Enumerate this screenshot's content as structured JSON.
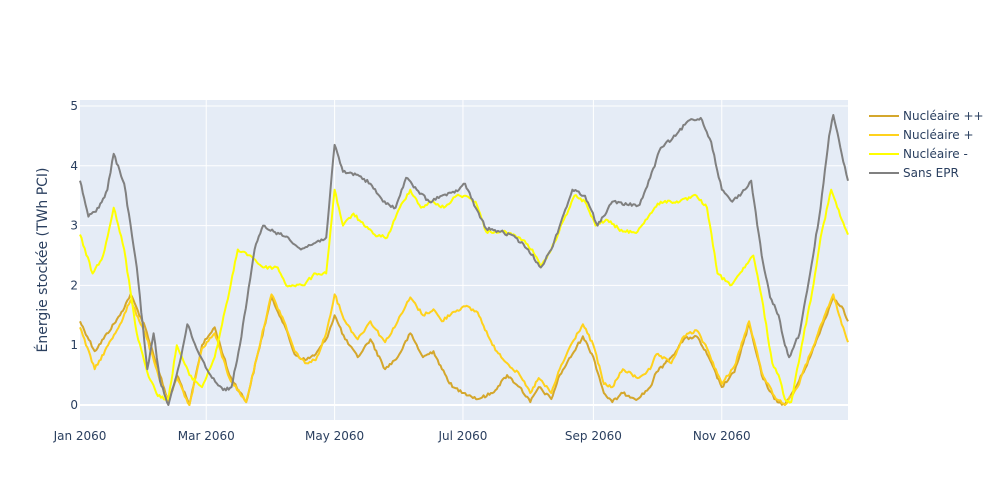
{
  "chart_data": {
    "type": "line",
    "title": "",
    "xlabel": "",
    "ylabel": "Énergie stockée (TWh PCI)",
    "x_range": [
      "2060-01-01",
      "2060-12-31"
    ],
    "ylim": [
      -0.25,
      5.1
    ],
    "x_ticks": [
      {
        "date": "2060-01-01",
        "label": "Jan 2060"
      },
      {
        "date": "2060-03-01",
        "label": "Mar 2060"
      },
      {
        "date": "2060-05-01",
        "label": "May 2060"
      },
      {
        "date": "2060-07-01",
        "label": "Jul 2060"
      },
      {
        "date": "2060-09-01",
        "label": "Sep 2060"
      },
      {
        "date": "2060-11-01",
        "label": "Nov 2060"
      }
    ],
    "y_ticks": [
      0,
      1,
      2,
      3,
      4,
      5
    ],
    "grid": true,
    "legend_position": "right",
    "plot_background": "#e5ecf6",
    "series": [
      {
        "name": "Nucléaire ++",
        "color": "#d4a72c",
        "points": [
          [
            "2060-01-01",
            1.4
          ],
          [
            "2060-01-08",
            0.9
          ],
          [
            "2060-01-20",
            1.5
          ],
          [
            "2060-01-25",
            1.85
          ],
          [
            "2060-02-01",
            1.3
          ],
          [
            "2060-02-08",
            0.5
          ],
          [
            "2060-02-12",
            0.05
          ],
          [
            "2060-02-16",
            0.5
          ],
          [
            "2060-02-22",
            0.0
          ],
          [
            "2060-02-28",
            1.0
          ],
          [
            "2060-03-05",
            1.3
          ],
          [
            "2060-03-12",
            0.5
          ],
          [
            "2060-03-20",
            0.05
          ],
          [
            "2060-04-01",
            1.8
          ],
          [
            "2060-04-07",
            1.35
          ],
          [
            "2060-04-12",
            0.85
          ],
          [
            "2060-04-17",
            0.75
          ],
          [
            "2060-04-22",
            0.85
          ],
          [
            "2060-04-27",
            1.1
          ],
          [
            "2060-05-01",
            1.5
          ],
          [
            "2060-05-06",
            1.1
          ],
          [
            "2060-05-12",
            0.8
          ],
          [
            "2060-05-18",
            1.1
          ],
          [
            "2060-05-25",
            0.6
          ],
          [
            "2060-05-31",
            0.8
          ],
          [
            "2060-06-06",
            1.2
          ],
          [
            "2060-06-12",
            0.8
          ],
          [
            "2060-06-17",
            0.9
          ],
          [
            "2060-06-21",
            0.6
          ],
          [
            "2060-06-26",
            0.3
          ],
          [
            "2060-07-02",
            0.2
          ],
          [
            "2060-07-08",
            0.1
          ],
          [
            "2060-07-15",
            0.2
          ],
          [
            "2060-07-22",
            0.5
          ],
          [
            "2060-07-28",
            0.3
          ],
          [
            "2060-08-02",
            0.05
          ],
          [
            "2060-08-06",
            0.3
          ],
          [
            "2060-08-12",
            0.1
          ],
          [
            "2060-08-16",
            0.5
          ],
          [
            "2060-08-22",
            0.85
          ],
          [
            "2060-08-27",
            1.15
          ],
          [
            "2060-09-01",
            0.8
          ],
          [
            "2060-09-06",
            0.2
          ],
          [
            "2060-09-10",
            0.05
          ],
          [
            "2060-09-15",
            0.2
          ],
          [
            "2060-09-22",
            0.1
          ],
          [
            "2060-09-28",
            0.3
          ],
          [
            "2060-10-01",
            0.55
          ],
          [
            "2060-10-08",
            0.8
          ],
          [
            "2060-10-14",
            1.1
          ],
          [
            "2060-10-20",
            1.15
          ],
          [
            "2060-10-25",
            0.85
          ],
          [
            "2060-11-01",
            0.3
          ],
          [
            "2060-11-07",
            0.55
          ],
          [
            "2060-11-14",
            1.35
          ],
          [
            "2060-11-20",
            0.5
          ],
          [
            "2060-11-26",
            0.1
          ],
          [
            "2060-12-01",
            0.0
          ],
          [
            "2060-12-07",
            0.35
          ],
          [
            "2060-12-13",
            0.8
          ],
          [
            "2060-12-19",
            1.35
          ],
          [
            "2060-12-24",
            1.8
          ],
          [
            "2060-12-28",
            1.65
          ],
          [
            "2060-12-31",
            1.4
          ]
        ]
      },
      {
        "name": "Nucléaire +",
        "color": "#ffd21c",
        "points": [
          [
            "2060-01-01",
            1.3
          ],
          [
            "2060-01-08",
            0.6
          ],
          [
            "2060-01-20",
            1.35
          ],
          [
            "2060-01-25",
            1.75
          ],
          [
            "2060-02-01",
            1.2
          ],
          [
            "2060-02-08",
            0.4
          ],
          [
            "2060-02-12",
            0.05
          ],
          [
            "2060-02-16",
            0.45
          ],
          [
            "2060-02-22",
            0.0
          ],
          [
            "2060-02-28",
            0.95
          ],
          [
            "2060-03-05",
            1.2
          ],
          [
            "2060-03-12",
            0.45
          ],
          [
            "2060-03-20",
            0.05
          ],
          [
            "2060-04-01",
            1.85
          ],
          [
            "2060-04-07",
            1.4
          ],
          [
            "2060-04-12",
            0.9
          ],
          [
            "2060-04-17",
            0.7
          ],
          [
            "2060-04-22",
            0.75
          ],
          [
            "2060-04-27",
            1.2
          ],
          [
            "2060-05-01",
            1.85
          ],
          [
            "2060-05-06",
            1.4
          ],
          [
            "2060-05-12",
            1.1
          ],
          [
            "2060-05-18",
            1.4
          ],
          [
            "2060-05-25",
            1.05
          ],
          [
            "2060-05-31",
            1.4
          ],
          [
            "2060-06-06",
            1.8
          ],
          [
            "2060-06-12",
            1.5
          ],
          [
            "2060-06-17",
            1.6
          ],
          [
            "2060-06-21",
            1.4
          ],
          [
            "2060-06-26",
            1.55
          ],
          [
            "2060-07-02",
            1.65
          ],
          [
            "2060-07-08",
            1.55
          ],
          [
            "2060-07-15",
            1.0
          ],
          [
            "2060-07-22",
            0.7
          ],
          [
            "2060-07-28",
            0.5
          ],
          [
            "2060-08-02",
            0.2
          ],
          [
            "2060-08-06",
            0.45
          ],
          [
            "2060-08-12",
            0.2
          ],
          [
            "2060-08-16",
            0.6
          ],
          [
            "2060-08-22",
            1.05
          ],
          [
            "2060-08-27",
            1.35
          ],
          [
            "2060-09-01",
            1.0
          ],
          [
            "2060-09-06",
            0.35
          ],
          [
            "2060-09-10",
            0.3
          ],
          [
            "2060-09-15",
            0.6
          ],
          [
            "2060-09-22",
            0.45
          ],
          [
            "2060-09-28",
            0.6
          ],
          [
            "2060-10-01",
            0.85
          ],
          [
            "2060-10-08",
            0.7
          ],
          [
            "2060-10-14",
            1.15
          ],
          [
            "2060-10-20",
            1.25
          ],
          [
            "2060-10-25",
            0.95
          ],
          [
            "2060-11-01",
            0.35
          ],
          [
            "2060-11-07",
            0.65
          ],
          [
            "2060-11-14",
            1.4
          ],
          [
            "2060-11-20",
            0.55
          ],
          [
            "2060-11-26",
            0.15
          ],
          [
            "2060-12-01",
            0.0
          ],
          [
            "2060-12-07",
            0.3
          ],
          [
            "2060-12-13",
            0.85
          ],
          [
            "2060-12-19",
            1.4
          ],
          [
            "2060-12-24",
            1.85
          ],
          [
            "2060-12-28",
            1.35
          ],
          [
            "2060-12-31",
            1.05
          ]
        ]
      },
      {
        "name": "Nucléaire -",
        "color": "#ffff00",
        "points": [
          [
            "2060-01-01",
            2.85
          ],
          [
            "2060-01-07",
            2.2
          ],
          [
            "2060-01-12",
            2.5
          ],
          [
            "2060-01-17",
            3.3
          ],
          [
            "2060-01-22",
            2.6
          ],
          [
            "2060-01-28",
            1.2
          ],
          [
            "2060-02-02",
            0.55
          ],
          [
            "2060-02-07",
            0.15
          ],
          [
            "2060-02-12",
            0.1
          ],
          [
            "2060-02-16",
            1.0
          ],
          [
            "2060-02-22",
            0.5
          ],
          [
            "2060-02-28",
            0.3
          ],
          [
            "2060-03-05",
            0.8
          ],
          [
            "2060-03-12",
            1.9
          ],
          [
            "2060-03-16",
            2.6
          ],
          [
            "2060-03-22",
            2.5
          ],
          [
            "2060-03-28",
            2.3
          ],
          [
            "2060-04-04",
            2.3
          ],
          [
            "2060-04-08",
            2.0
          ],
          [
            "2060-04-16",
            2.0
          ],
          [
            "2060-04-22",
            2.2
          ],
          [
            "2060-04-27",
            2.2
          ],
          [
            "2060-05-01",
            3.6
          ],
          [
            "2060-05-05",
            3.0
          ],
          [
            "2060-05-10",
            3.2
          ],
          [
            "2060-05-15",
            3.0
          ],
          [
            "2060-05-20",
            2.85
          ],
          [
            "2060-05-26",
            2.8
          ],
          [
            "2060-06-01",
            3.3
          ],
          [
            "2060-06-06",
            3.6
          ],
          [
            "2060-06-11",
            3.3
          ],
          [
            "2060-06-16",
            3.4
          ],
          [
            "2060-06-22",
            3.3
          ],
          [
            "2060-06-28",
            3.5
          ],
          [
            "2060-07-02",
            3.5
          ],
          [
            "2060-07-07",
            3.4
          ],
          [
            "2060-07-12",
            2.9
          ],
          [
            "2060-07-20",
            2.9
          ],
          [
            "2060-07-28",
            2.8
          ],
          [
            "2060-08-03",
            2.6
          ],
          [
            "2060-08-07",
            2.3
          ],
          [
            "2060-08-12",
            2.6
          ],
          [
            "2060-08-18",
            3.1
          ],
          [
            "2060-08-23",
            3.5
          ],
          [
            "2060-08-28",
            3.4
          ],
          [
            "2060-09-02",
            3.0
          ],
          [
            "2060-09-07",
            3.1
          ],
          [
            "2060-09-15",
            2.9
          ],
          [
            "2060-09-22",
            2.9
          ],
          [
            "2060-09-28",
            3.2
          ],
          [
            "2060-10-03",
            3.4
          ],
          [
            "2060-10-12",
            3.4
          ],
          [
            "2060-10-20",
            3.5
          ],
          [
            "2060-10-25",
            3.3
          ],
          [
            "2060-10-30",
            2.2
          ],
          [
            "2060-11-05",
            2.0
          ],
          [
            "2060-11-12",
            2.3
          ],
          [
            "2060-11-16",
            2.5
          ],
          [
            "2060-11-20",
            1.8
          ],
          [
            "2060-11-25",
            0.7
          ],
          [
            "2060-11-28",
            0.5
          ],
          [
            "2060-12-01",
            0.1
          ],
          [
            "2060-12-04",
            0.05
          ],
          [
            "2060-12-09",
            1.0
          ],
          [
            "2060-12-14",
            1.9
          ],
          [
            "2060-12-18",
            2.8
          ],
          [
            "2060-12-23",
            3.6
          ],
          [
            "2060-12-28",
            3.1
          ],
          [
            "2060-12-31",
            2.85
          ]
        ]
      },
      {
        "name": "Sans EPR",
        "color": "#808080",
        "points": [
          [
            "2060-01-01",
            3.75
          ],
          [
            "2060-01-05",
            3.15
          ],
          [
            "2060-01-10",
            3.3
          ],
          [
            "2060-01-14",
            3.6
          ],
          [
            "2060-01-17",
            4.2
          ],
          [
            "2060-01-22",
            3.7
          ],
          [
            "2060-01-28",
            2.3
          ],
          [
            "2060-02-02",
            0.6
          ],
          [
            "2060-02-05",
            1.2
          ],
          [
            "2060-02-08",
            0.4
          ],
          [
            "2060-02-12",
            0.0
          ],
          [
            "2060-02-18",
            0.8
          ],
          [
            "2060-02-21",
            1.35
          ],
          [
            "2060-02-26",
            0.9
          ],
          [
            "2060-03-03",
            0.5
          ],
          [
            "2060-03-09",
            0.25
          ],
          [
            "2060-03-13",
            0.3
          ],
          [
            "2060-03-17",
            1.0
          ],
          [
            "2060-03-24",
            2.6
          ],
          [
            "2060-03-28",
            3.0
          ],
          [
            "2060-04-02",
            2.9
          ],
          [
            "2060-04-09",
            2.8
          ],
          [
            "2060-04-15",
            2.6
          ],
          [
            "2060-04-21",
            2.7
          ],
          [
            "2060-04-27",
            2.8
          ],
          [
            "2060-05-01",
            4.35
          ],
          [
            "2060-05-05",
            3.9
          ],
          [
            "2060-05-12",
            3.85
          ],
          [
            "2060-05-18",
            3.7
          ],
          [
            "2060-05-24",
            3.4
          ],
          [
            "2060-05-30",
            3.3
          ],
          [
            "2060-06-04",
            3.8
          ],
          [
            "2060-06-09",
            3.6
          ],
          [
            "2060-06-15",
            3.4
          ],
          [
            "2060-06-21",
            3.5
          ],
          [
            "2060-06-27",
            3.55
          ],
          [
            "2060-07-02",
            3.7
          ],
          [
            "2060-07-07",
            3.3
          ],
          [
            "2060-07-12",
            2.95
          ],
          [
            "2060-07-19",
            2.9
          ],
          [
            "2060-07-26",
            2.8
          ],
          [
            "2060-08-01",
            2.6
          ],
          [
            "2060-08-07",
            2.3
          ],
          [
            "2060-08-12",
            2.6
          ],
          [
            "2060-08-18",
            3.2
          ],
          [
            "2060-08-22",
            3.6
          ],
          [
            "2060-08-28",
            3.5
          ],
          [
            "2060-09-03",
            3.0
          ],
          [
            "2060-09-10",
            3.4
          ],
          [
            "2060-09-17",
            3.35
          ],
          [
            "2060-09-23",
            3.35
          ],
          [
            "2060-09-28",
            3.8
          ],
          [
            "2060-10-03",
            4.3
          ],
          [
            "2060-10-10",
            4.5
          ],
          [
            "2060-10-16",
            4.75
          ],
          [
            "2060-10-22",
            4.8
          ],
          [
            "2060-10-27",
            4.4
          ],
          [
            "2060-11-01",
            3.6
          ],
          [
            "2060-11-06",
            3.4
          ],
          [
            "2060-11-12",
            3.6
          ],
          [
            "2060-11-15",
            3.75
          ],
          [
            "2060-11-20",
            2.5
          ],
          [
            "2060-11-24",
            1.8
          ],
          [
            "2060-11-28",
            1.5
          ],
          [
            "2060-12-01",
            1.0
          ],
          [
            "2060-12-03",
            0.8
          ],
          [
            "2060-12-08",
            1.2
          ],
          [
            "2060-12-13",
            2.2
          ],
          [
            "2060-12-18",
            3.3
          ],
          [
            "2060-12-22",
            4.5
          ],
          [
            "2060-12-24",
            4.85
          ],
          [
            "2060-12-28",
            4.2
          ],
          [
            "2060-12-31",
            3.75
          ]
        ]
      }
    ]
  }
}
